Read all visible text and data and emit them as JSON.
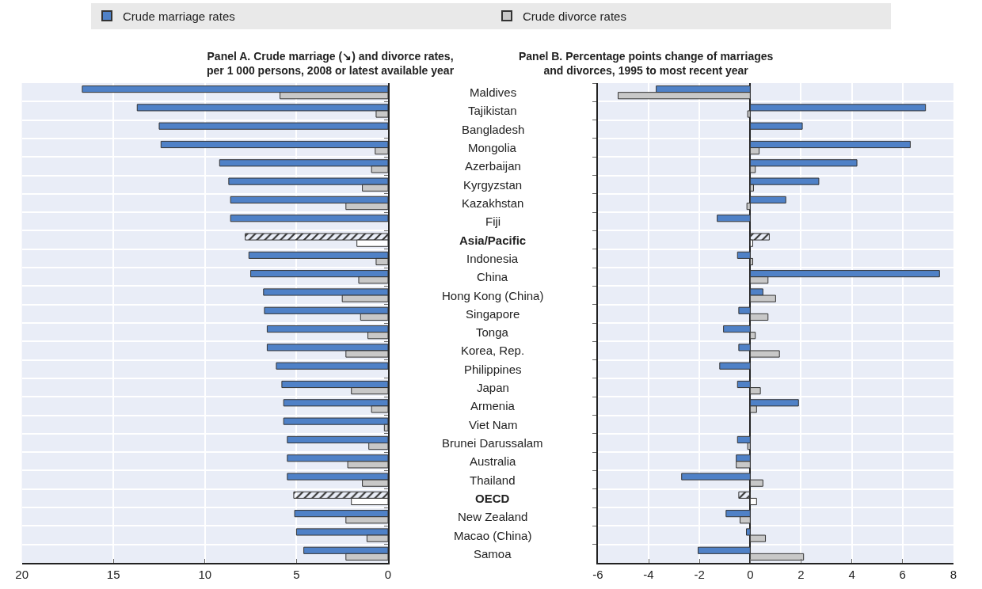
{
  "chart_data": [
    {
      "type": "bar",
      "orientation": "horizontal",
      "title": "Panel A. Crude marriage (↘) and divorce rates,\nper 1 000 persons, 2008 or latest available year",
      "categories": [
        "Maldives",
        "Tajikistan",
        "Bangladesh",
        "Mongolia",
        "Azerbaijan",
        "Kyrgyzstan",
        "Kazakhstan",
        "Fiji",
        "Asia/Pacific",
        "Indonesia",
        "China",
        "Hong Kong (China)",
        "Singapore",
        "Tonga",
        "Korea, Rep.",
        "Philippines",
        "Japan",
        "Armenia",
        "Viet Nam",
        "Brunei Darussalam",
        "Australia",
        "Thailand",
        "OECD",
        "New Zealand",
        "Macao (China)",
        "Samoa"
      ],
      "series": [
        {
          "name": "Crude marriage rates",
          "color": "#4f81c7",
          "colors": [
            "#4f81c7",
            "#4f81c7",
            "#4f81c7",
            "#4f81c7",
            "#4f81c7",
            "#4f81c7",
            "#4f81c7",
            "#4f81c7",
            "#333333",
            "#4f81c7",
            "#4f81c7",
            "#4f81c7",
            "#4f81c7",
            "#4f81c7",
            "#4f81c7",
            "#4f81c7",
            "#4f81c7",
            "#4f81c7",
            "#4f81c7",
            "#4f81c7",
            "#4f81c7",
            "#4f81c7",
            "#333333",
            "#4f81c7",
            "#4f81c7",
            "#4f81c7"
          ],
          "values": [
            16.7,
            13.7,
            12.5,
            12.4,
            9.2,
            8.7,
            8.6,
            8.6,
            7.8,
            7.6,
            7.5,
            6.8,
            6.75,
            6.6,
            6.6,
            6.1,
            5.8,
            5.7,
            5.7,
            5.5,
            5.5,
            5.5,
            5.15,
            5.1,
            5.0,
            4.6
          ]
        },
        {
          "name": "Crude divorce rates",
          "color": "#c8c8c8",
          "colors": [
            "#c8c8c8",
            "#c8c8c8",
            "#c8c8c8",
            "#c8c8c8",
            "#c8c8c8",
            "#c8c8c8",
            "#c8c8c8",
            "#c8c8c8",
            "#ffffff",
            "#c8c8c8",
            "#c8c8c8",
            "#c8c8c8",
            "#c8c8c8",
            "#c8c8c8",
            "#c8c8c8",
            "#c8c8c8",
            "#c8c8c8",
            "#c8c8c8",
            "#c8c8c8",
            "#c8c8c8",
            "#c8c8c8",
            "#c8c8c8",
            "#ffffff",
            "#c8c8c8",
            "#c8c8c8",
            "#c8c8c8"
          ],
          "values": [
            5.9,
            0.65,
            null,
            0.7,
            0.9,
            1.4,
            2.3,
            null,
            1.7,
            0.65,
            1.6,
            2.5,
            1.5,
            1.1,
            2.3,
            null,
            2.0,
            0.9,
            0.2,
            1.05,
            2.2,
            1.4,
            2.0,
            2.3,
            1.15,
            2.3
          ]
        }
      ],
      "xlim": [
        20,
        0
      ],
      "xticks": [
        20,
        15,
        10,
        5,
        0
      ],
      "grid": true,
      "legend": "top",
      "tick_labels": "x"
    },
    {
      "type": "bar",
      "orientation": "horizontal",
      "title": "Panel B. Percentage points change of marriages\nand divorces, 1995 to most recent year",
      "categories": [
        "Maldives",
        "Tajikistan",
        "Bangladesh",
        "Mongolia",
        "Azerbaijan",
        "Kyrgyzstan",
        "Kazakhstan",
        "Fiji",
        "Asia/Pacific",
        "Indonesia",
        "China",
        "Hong Kong (China)",
        "Singapore",
        "Tonga",
        "Korea, Rep.",
        "Philippines",
        "Japan",
        "Armenia",
        "Viet Nam",
        "Brunei Darussalam",
        "Australia",
        "Thailand",
        "OECD",
        "New Zealand",
        "Macao (China)",
        "Samoa"
      ],
      "series": [
        {
          "color": "#4f81c7",
          "colors": [
            "#4f81c7",
            "#4f81c7",
            "#4f81c7",
            "#4f81c7",
            "#4f81c7",
            "#4f81c7",
            "#4f81c7",
            "#4f81c7",
            "#333333",
            "#4f81c7",
            "#4f81c7",
            "#4f81c7",
            "#4f81c7",
            "#4f81c7",
            "#4f81c7",
            "#4f81c7",
            "#4f81c7",
            "#4f81c7",
            "#4f81c7",
            "#4f81c7",
            "#4f81c7",
            "#4f81c7",
            "#333333",
            "#4f81c7",
            "#4f81c7",
            "#4f81c7"
          ],
          "values": [
            -3.7,
            6.9,
            2.05,
            6.3,
            4.2,
            2.7,
            1.4,
            -1.3,
            0.75,
            -0.5,
            7.45,
            0.5,
            -0.45,
            -1.05,
            -0.45,
            -1.2,
            -0.5,
            1.9,
            null,
            -0.5,
            -0.55,
            -2.7,
            -0.45,
            -0.95,
            -0.15,
            -2.05
          ]
        },
        {
          "color": "#c8c8c8",
          "colors": [
            "#c8c8c8",
            "#c8c8c8",
            "#c8c8c8",
            "#c8c8c8",
            "#c8c8c8",
            "#c8c8c8",
            "#c8c8c8",
            "#c8c8c8",
            "#ffffff",
            "#c8c8c8",
            "#c8c8c8",
            "#c8c8c8",
            "#c8c8c8",
            "#c8c8c8",
            "#c8c8c8",
            "#c8c8c8",
            "#c8c8c8",
            "#c8c8c8",
            "#c8c8c8",
            "#c8c8c8",
            "#c8c8c8",
            "#c8c8c8",
            "#ffffff",
            "#c8c8c8",
            "#c8c8c8",
            "#c8c8c8"
          ],
          "values": [
            -5.2,
            -0.1,
            null,
            0.35,
            0.2,
            0.13,
            -0.13,
            null,
            0.1,
            0.1,
            0.7,
            1.0,
            0.7,
            0.2,
            1.15,
            null,
            0.4,
            0.25,
            null,
            -0.1,
            -0.55,
            0.5,
            0.25,
            -0.4,
            0.6,
            2.1
          ]
        }
      ],
      "xlim": [
        -6,
        8
      ],
      "xticks": [
        -6,
        -4,
        -2,
        0,
        2,
        4,
        6,
        8
      ],
      "grid": true
    }
  ]
}
